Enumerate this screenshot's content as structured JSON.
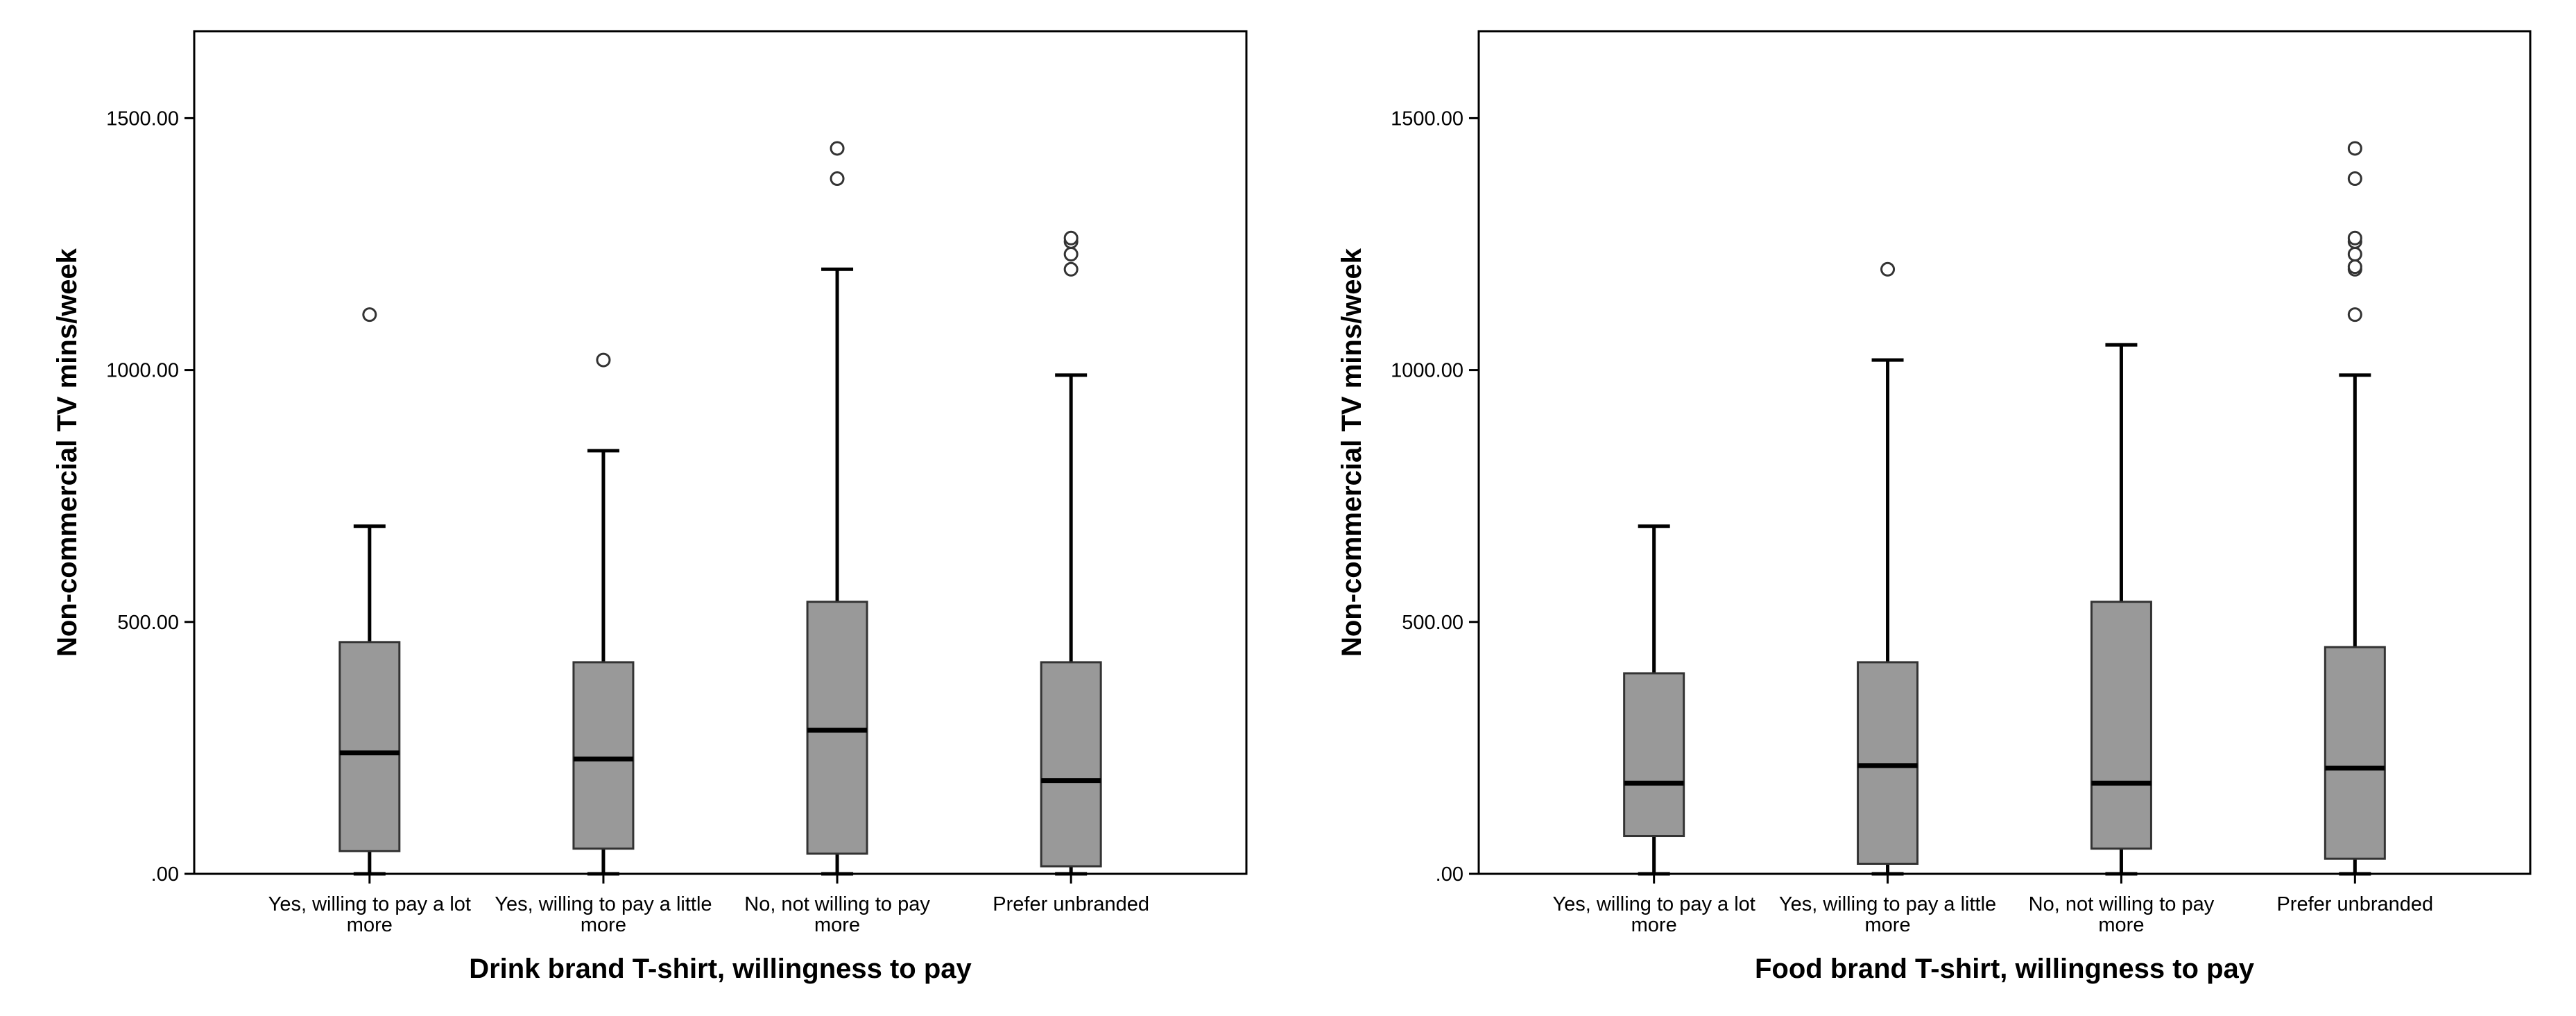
{
  "chart_data": [
    {
      "type": "box",
      "xlabel": "Drink brand T-shirt, willingness to pay",
      "ylabel": "Non-commercial TV mins/week",
      "ylim": [
        0,
        1500
      ],
      "y_ticks": [
        ".00",
        "500.00",
        "1000.00",
        "1500.00"
      ],
      "grid": false,
      "box_color": "#999999",
      "categories": [
        {
          "lines": [
            "Yes, willing to pay a lot",
            "more"
          ],
          "min": 0,
          "q1": 45,
          "median": 240,
          "q3": 460,
          "max": 690,
          "outliers": [
            1110
          ]
        },
        {
          "lines": [
            "Yes, willing to pay a little",
            "more"
          ],
          "min": 0,
          "q1": 50,
          "median": 228,
          "q3": 420,
          "max": 840,
          "outliers": [
            1020
          ]
        },
        {
          "lines": [
            "No, not willing to pay",
            "more"
          ],
          "min": 0,
          "q1": 40,
          "median": 285,
          "q3": 540,
          "max": 1200,
          "outliers": [
            1380,
            1440
          ]
        },
        {
          "lines": [
            "Prefer unbranded"
          ],
          "min": 0,
          "q1": 15,
          "median": 185,
          "q3": 420,
          "max": 990,
          "outliers": [
            1200,
            1230,
            1255,
            1262
          ]
        }
      ]
    },
    {
      "type": "box",
      "xlabel": "Food brand T-shirt, willingness to pay",
      "ylabel": "Non-commercial TV mins/week",
      "ylim": [
        0,
        1500
      ],
      "y_ticks": [
        ".00",
        "500.00",
        "1000.00",
        "1500.00"
      ],
      "grid": false,
      "box_color": "#999999",
      "categories": [
        {
          "lines": [
            "Yes, willing to pay a lot",
            "more"
          ],
          "min": 0,
          "q1": 75,
          "median": 180,
          "q3": 398,
          "max": 690,
          "outliers": []
        },
        {
          "lines": [
            "Yes, willing to pay a little",
            "more"
          ],
          "min": 0,
          "q1": 20,
          "median": 215,
          "q3": 420,
          "max": 1020,
          "outliers": [
            1200
          ]
        },
        {
          "lines": [
            "No, not willing to pay",
            "more"
          ],
          "min": 0,
          "q1": 50,
          "median": 180,
          "q3": 540,
          "max": 1050,
          "outliers": []
        },
        {
          "lines": [
            "Prefer unbranded"
          ],
          "min": 0,
          "q1": 30,
          "median": 210,
          "q3": 450,
          "max": 990,
          "outliers": [
            1110,
            1200,
            1205,
            1230,
            1255,
            1262,
            1380,
            1440
          ]
        }
      ]
    }
  ]
}
